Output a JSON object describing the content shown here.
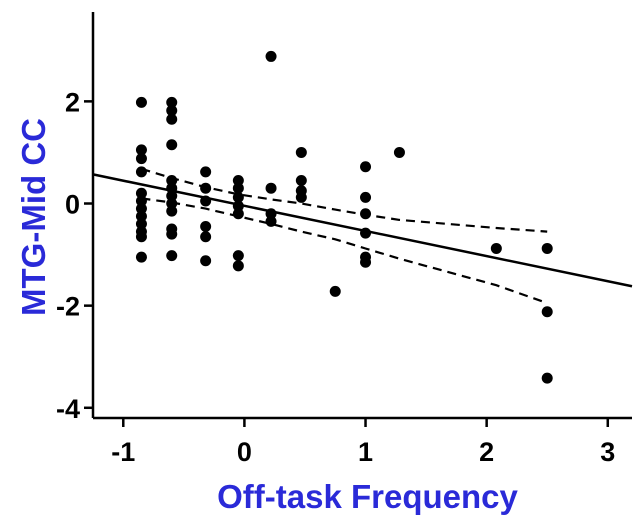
{
  "chart_data": {
    "type": "scatter",
    "xlabel": "Off-task Frequency",
    "ylabel": "MTG-Mid CC",
    "xlim": [
      -1.25,
      3.2
    ],
    "ylim": [
      -4.2,
      3.75
    ],
    "x_ticks": [
      -1,
      0,
      1,
      2,
      3
    ],
    "y_ticks": [
      -4,
      -2,
      0,
      2
    ],
    "x_tick_labels": [
      "-1",
      "0",
      "1",
      "2",
      "3"
    ],
    "y_tick_labels": [
      "-4",
      "-2",
      "0",
      "2"
    ],
    "grid": false,
    "series": [
      {
        "points": [
          [
            -0.85,
            1.98
          ],
          [
            -0.85,
            1.05
          ],
          [
            -0.85,
            0.88
          ],
          [
            -0.85,
            0.62
          ],
          [
            -0.85,
            0.2
          ],
          [
            -0.85,
            0.05
          ],
          [
            -0.85,
            -0.1
          ],
          [
            -0.85,
            -0.25
          ],
          [
            -0.85,
            -0.4
          ],
          [
            -0.85,
            -0.55
          ],
          [
            -0.85,
            -0.65
          ],
          [
            -0.85,
            -1.05
          ],
          [
            -0.6,
            1.98
          ],
          [
            -0.6,
            1.82
          ],
          [
            -0.6,
            1.65
          ],
          [
            -0.6,
            1.15
          ],
          [
            -0.6,
            0.45
          ],
          [
            -0.6,
            0.3
          ],
          [
            -0.6,
            0.15
          ],
          [
            -0.6,
            0.0
          ],
          [
            -0.6,
            -0.15
          ],
          [
            -0.6,
            -0.5
          ],
          [
            -0.6,
            -0.6
          ],
          [
            -0.6,
            -1.02
          ],
          [
            -0.32,
            0.62
          ],
          [
            -0.32,
            0.3
          ],
          [
            -0.32,
            0.05
          ],
          [
            -0.32,
            -0.45
          ],
          [
            -0.32,
            -0.65
          ],
          [
            -0.32,
            -1.12
          ],
          [
            -0.05,
            0.45
          ],
          [
            -0.05,
            0.3
          ],
          [
            -0.05,
            0.12
          ],
          [
            -0.05,
            -0.05
          ],
          [
            -0.05,
            -0.2
          ],
          [
            -0.05,
            -1.02
          ],
          [
            -0.05,
            -1.22
          ],
          [
            0.22,
            2.88
          ],
          [
            0.22,
            0.3
          ],
          [
            0.22,
            -0.2
          ],
          [
            0.22,
            -0.35
          ],
          [
            0.47,
            1.0
          ],
          [
            0.47,
            0.45
          ],
          [
            0.47,
            0.25
          ],
          [
            0.47,
            0.12
          ],
          [
            0.75,
            -1.72
          ],
          [
            1.0,
            0.72
          ],
          [
            1.0,
            0.12
          ],
          [
            1.0,
            -0.2
          ],
          [
            1.0,
            -0.58
          ],
          [
            1.0,
            -1.05
          ],
          [
            1.0,
            -1.15
          ],
          [
            1.28,
            1.0
          ],
          [
            2.08,
            -0.88
          ],
          [
            2.5,
            -0.88
          ],
          [
            2.5,
            -2.12
          ],
          [
            2.5,
            -3.42
          ]
        ]
      }
    ],
    "regression": {
      "x": [
        -1.25,
        3.2
      ],
      "y": [
        0.57,
        -1.62
      ]
    },
    "confidence_upper": {
      "x": [
        -0.85,
        -0.6,
        -0.32,
        -0.05,
        0.22,
        0.47,
        0.75,
        1.0,
        1.28,
        2.08,
        2.5
      ],
      "y": [
        0.68,
        0.5,
        0.32,
        0.18,
        0.08,
        0.0,
        -0.12,
        -0.22,
        -0.32,
        -0.48,
        -0.55
      ]
    },
    "confidence_lower": {
      "x": [
        -0.85,
        -0.6,
        -0.32,
        -0.05,
        0.22,
        0.47,
        0.75,
        1.0,
        1.28,
        2.08,
        2.5
      ],
      "y": [
        0.1,
        0.02,
        -0.1,
        -0.25,
        -0.4,
        -0.55,
        -0.7,
        -0.88,
        -1.08,
        -1.6,
        -1.95
      ]
    },
    "colors": {
      "points": "#000000",
      "axes": "#000000",
      "axis_title": "#2a2ad8",
      "lines": "#000000"
    }
  }
}
